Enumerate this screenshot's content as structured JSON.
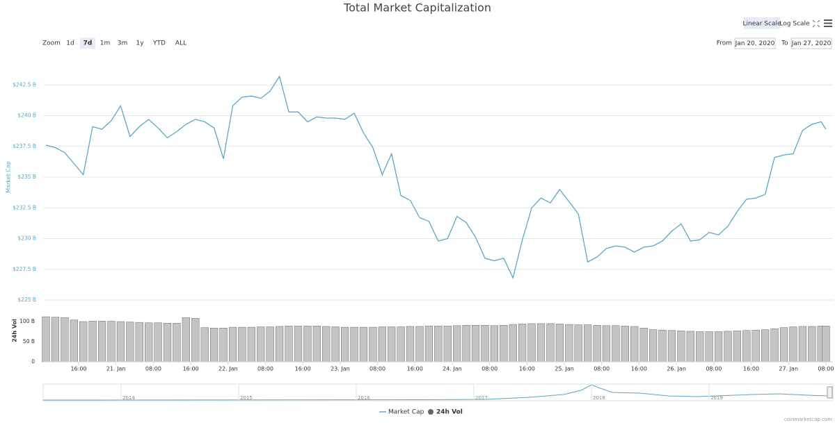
{
  "chart_data": [
    {
      "type": "line",
      "title": "Total Market Capitalization",
      "y_label": "Market Cap",
      "x": [
        "2020-01-20T09:00",
        "2020-01-20T11:00",
        "2020-01-20T13:00",
        "2020-01-20T15:00",
        "2020-01-20T17:00",
        "2020-01-20T19:00",
        "2020-01-20T21:00",
        "2020-01-20T23:00",
        "2020-01-21T01:00",
        "2020-01-21T03:00",
        "2020-01-21T05:00",
        "2020-01-21T07:00",
        "2020-01-21T09:00",
        "2020-01-21T11:00",
        "2020-01-21T13:00",
        "2020-01-21T15:00",
        "2020-01-21T17:00",
        "2020-01-21T19:00",
        "2020-01-21T21:00",
        "2020-01-21T23:00",
        "2020-01-22T01:00",
        "2020-01-22T03:00",
        "2020-01-22T05:00",
        "2020-01-22T07:00",
        "2020-01-22T09:00",
        "2020-01-22T11:00",
        "2020-01-22T13:00",
        "2020-01-22T15:00",
        "2020-01-22T17:00",
        "2020-01-22T19:00",
        "2020-01-22T21:00",
        "2020-01-22T23:00",
        "2020-01-23T01:00",
        "2020-01-23T03:00",
        "2020-01-23T05:00",
        "2020-01-23T07:00",
        "2020-01-23T09:00",
        "2020-01-23T11:00",
        "2020-01-23T13:00",
        "2020-01-23T15:00",
        "2020-01-23T17:00",
        "2020-01-23T19:00",
        "2020-01-23T21:00",
        "2020-01-23T23:00",
        "2020-01-24T01:00",
        "2020-01-24T03:00",
        "2020-01-24T05:00",
        "2020-01-24T07:00",
        "2020-01-24T09:00",
        "2020-01-24T11:00",
        "2020-01-24T13:00",
        "2020-01-24T15:00",
        "2020-01-24T17:00",
        "2020-01-24T19:00",
        "2020-01-24T21:00",
        "2020-01-24T23:00",
        "2020-01-25T01:00",
        "2020-01-25T03:00",
        "2020-01-25T05:00",
        "2020-01-25T07:00",
        "2020-01-25T09:00",
        "2020-01-25T11:00",
        "2020-01-25T13:00",
        "2020-01-25T15:00",
        "2020-01-25T17:00",
        "2020-01-25T19:00",
        "2020-01-25T21:00",
        "2020-01-25T23:00",
        "2020-01-26T01:00",
        "2020-01-26T03:00",
        "2020-01-26T05:00",
        "2020-01-26T07:00",
        "2020-01-26T09:00",
        "2020-01-26T11:00",
        "2020-01-26T13:00",
        "2020-01-26T15:00",
        "2020-01-26T17:00",
        "2020-01-26T19:00",
        "2020-01-26T21:00",
        "2020-01-26T23:00",
        "2020-01-27T01:00",
        "2020-01-27T03:00",
        "2020-01-27T05:00",
        "2020-01-27T07:00",
        "2020-01-27T08:00"
      ],
      "series": [
        {
          "name": "Market Cap",
          "color": "#5aa6c8",
          "values": [
            237.6,
            237.4,
            237.0,
            236.1,
            235.2,
            239.1,
            238.9,
            239.6,
            240.8,
            238.3,
            239.1,
            239.7,
            239.0,
            238.2,
            238.7,
            239.3,
            239.7,
            239.5,
            239.0,
            236.5,
            240.8,
            241.5,
            241.6,
            241.4,
            242.0,
            243.2,
            240.3,
            240.3,
            239.5,
            239.9,
            239.8,
            239.8,
            239.7,
            240.2,
            238.6,
            237.4,
            235.2,
            236.9,
            233.5,
            233.1,
            231.7,
            231.4,
            229.8,
            230.0,
            231.8,
            231.3,
            230.1,
            228.4,
            228.2,
            228.4,
            226.8,
            229.9,
            232.5,
            233.3,
            232.9,
            234.0,
            233.0,
            232.0,
            228.1,
            228.5,
            229.2,
            229.4,
            229.3,
            228.9,
            229.3,
            229.4,
            229.8,
            230.6,
            231.2,
            229.8,
            229.9,
            230.5,
            230.3,
            231.0,
            232.2,
            233.2,
            233.3,
            233.6,
            236.6,
            236.8,
            236.9,
            238.8,
            239.3,
            239.5,
            238.9
          ]
        }
      ],
      "xlim": [
        "2020-01-20T08:24",
        "2020-01-27T09:30"
      ],
      "xticks": [
        {
          "value": "2020-01-20T16:00",
          "label": "16:00"
        },
        {
          "value": "2020-01-21T00:00",
          "label": "21. Jan"
        },
        {
          "value": "2020-01-21T08:00",
          "label": "08:00"
        },
        {
          "value": "2020-01-21T16:00",
          "label": "16:00"
        },
        {
          "value": "2020-01-22T00:00",
          "label": "22. Jan"
        },
        {
          "value": "2020-01-22T08:00",
          "label": "08:00"
        },
        {
          "value": "2020-01-22T16:00",
          "label": "16:00"
        },
        {
          "value": "2020-01-23T00:00",
          "label": "23. Jan"
        },
        {
          "value": "2020-01-23T08:00",
          "label": "08:00"
        },
        {
          "value": "2020-01-23T16:00",
          "label": "16:00"
        },
        {
          "value": "2020-01-24T00:00",
          "label": "24. Jan"
        },
        {
          "value": "2020-01-24T08:00",
          "label": "08:00"
        },
        {
          "value": "2020-01-24T16:00",
          "label": "16:00"
        },
        {
          "value": "2020-01-25T00:00",
          "label": "25. Jan"
        },
        {
          "value": "2020-01-25T08:00",
          "label": "08:00"
        },
        {
          "value": "2020-01-25T16:00",
          "label": "16:00"
        },
        {
          "value": "2020-01-26T00:00",
          "label": "26. Jan"
        },
        {
          "value": "2020-01-26T08:00",
          "label": "08:00"
        },
        {
          "value": "2020-01-26T16:00",
          "label": "16:00"
        },
        {
          "value": "2020-01-27T00:00",
          "label": "27. Jan"
        },
        {
          "value": "2020-01-27T08:00",
          "label": "08:00"
        }
      ],
      "ylim": [
        225,
        245
      ],
      "yticks": [
        {
          "value": 225,
          "label": "$225 B"
        },
        {
          "value": 227.5,
          "label": "$227.5 B"
        },
        {
          "value": 230,
          "label": "$230 B"
        },
        {
          "value": 232.5,
          "label": "$232.5 B"
        },
        {
          "value": 235,
          "label": "$235 B"
        },
        {
          "value": 237.5,
          "label": "$237.5 B"
        },
        {
          "value": 240,
          "label": "$240 B"
        },
        {
          "value": 242.5,
          "label": "$242.5 B"
        }
      ],
      "grid": true
    },
    {
      "type": "bar",
      "y_label": "24h Vol",
      "x": [
        "2020-01-20T09:00",
        "2020-01-20T11:00",
        "2020-01-20T13:00",
        "2020-01-20T15:00",
        "2020-01-20T17:00",
        "2020-01-20T19:00",
        "2020-01-20T21:00",
        "2020-01-20T23:00",
        "2020-01-21T01:00",
        "2020-01-21T03:00",
        "2020-01-21T05:00",
        "2020-01-21T07:00",
        "2020-01-21T09:00",
        "2020-01-21T11:00",
        "2020-01-21T13:00",
        "2020-01-21T15:00",
        "2020-01-21T17:00",
        "2020-01-21T19:00",
        "2020-01-21T21:00",
        "2020-01-21T23:00",
        "2020-01-22T01:00",
        "2020-01-22T03:00",
        "2020-01-22T05:00",
        "2020-01-22T07:00",
        "2020-01-22T09:00",
        "2020-01-22T11:00",
        "2020-01-22T13:00",
        "2020-01-22T15:00",
        "2020-01-22T17:00",
        "2020-01-22T19:00",
        "2020-01-22T21:00",
        "2020-01-22T23:00",
        "2020-01-23T01:00",
        "2020-01-23T03:00",
        "2020-01-23T05:00",
        "2020-01-23T07:00",
        "2020-01-23T09:00",
        "2020-01-23T11:00",
        "2020-01-23T13:00",
        "2020-01-23T15:00",
        "2020-01-23T17:00",
        "2020-01-23T19:00",
        "2020-01-23T21:00",
        "2020-01-23T23:00",
        "2020-01-24T01:00",
        "2020-01-24T03:00",
        "2020-01-24T05:00",
        "2020-01-24T07:00",
        "2020-01-24T09:00",
        "2020-01-24T11:00",
        "2020-01-24T13:00",
        "2020-01-24T15:00",
        "2020-01-24T17:00",
        "2020-01-24T19:00",
        "2020-01-24T21:00",
        "2020-01-24T23:00",
        "2020-01-25T01:00",
        "2020-01-25T03:00",
        "2020-01-25T05:00",
        "2020-01-25T07:00",
        "2020-01-25T09:00",
        "2020-01-25T11:00",
        "2020-01-25T13:00",
        "2020-01-25T15:00",
        "2020-01-25T17:00",
        "2020-01-25T19:00",
        "2020-01-25T21:00",
        "2020-01-25T23:00",
        "2020-01-26T01:00",
        "2020-01-26T03:00",
        "2020-01-26T05:00",
        "2020-01-26T07:00",
        "2020-01-26T09:00",
        "2020-01-26T11:00",
        "2020-01-26T13:00",
        "2020-01-26T15:00",
        "2020-01-26T17:00",
        "2020-01-26T19:00",
        "2020-01-26T21:00",
        "2020-01-26T23:00",
        "2020-01-27T01:00",
        "2020-01-27T03:00",
        "2020-01-27T05:00",
        "2020-01-27T07:00",
        "2020-01-27T08:00"
      ],
      "series": [
        {
          "name": "24h Vol",
          "color": "#c4c4c4",
          "values": [
            112,
            111,
            110,
            104,
            100,
            101,
            101,
            101,
            100,
            99,
            98,
            97,
            97,
            96,
            96,
            110,
            108,
            85,
            84,
            84,
            86,
            86,
            86,
            87,
            87,
            88,
            89,
            89,
            89,
            89,
            88,
            87,
            86,
            86,
            86,
            86,
            87,
            87,
            87,
            88,
            88,
            89,
            89,
            89,
            90,
            91,
            91,
            91,
            90,
            91,
            93,
            94,
            95,
            95,
            95,
            94,
            93,
            92,
            92,
            91,
            90,
            90,
            89,
            88,
            84,
            80,
            79,
            78,
            77,
            76,
            75,
            75,
            75,
            76,
            77,
            78,
            79,
            80,
            82,
            85,
            87,
            88,
            88,
            89,
            89
          ]
        }
      ],
      "xlim": [
        "2020-01-20T08:24",
        "2020-01-27T09:30"
      ],
      "ylim": [
        0,
        150
      ],
      "yticks": [
        0,
        {
          "value": 50,
          "label": "50 B"
        },
        {
          "value": 100,
          "label": "100 B"
        }
      ],
      "grid": false
    }
  ],
  "controls": {
    "zoom_label": "Zoom",
    "zoom_options": [
      "1d",
      "7d",
      "1m",
      "3m",
      "1y",
      "YTD",
      "ALL"
    ],
    "from_label": "From",
    "from": "Jan 20, 2020",
    "to_label": "To",
    "to": "Jan 27, 2020",
    "scales": [
      "Linear Scale",
      "Log Scale"
    ]
  },
  "navigator": {
    "labels": [
      "2014",
      "2015",
      "2016",
      "2017",
      "2018",
      "2019"
    ]
  },
  "credit": "coinmarketcap.com"
}
